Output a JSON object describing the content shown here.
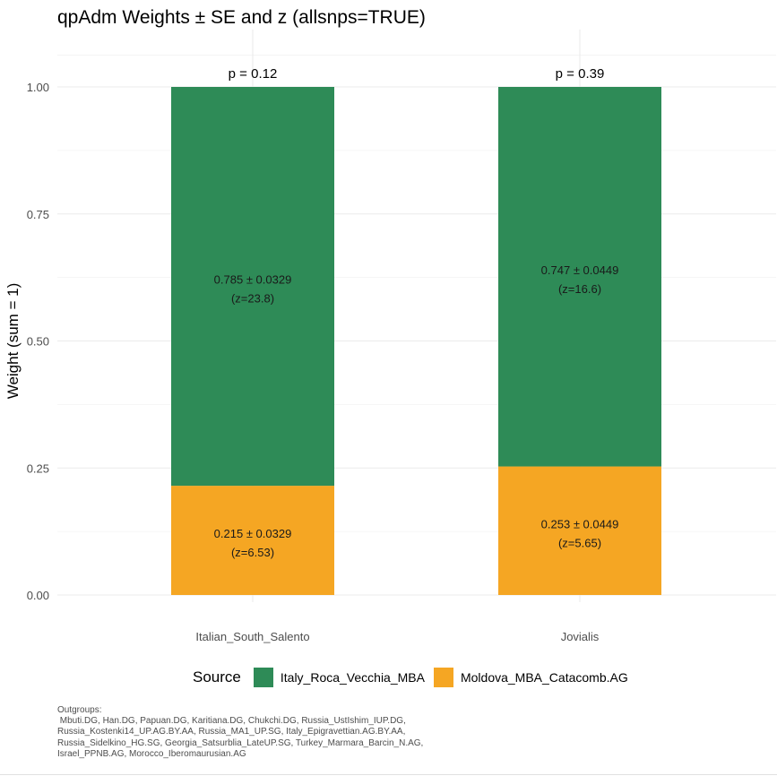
{
  "chart_data": {
    "type": "bar",
    "stacked": true,
    "title": "qpAdm Weights ± SE and z (allsnps=TRUE)",
    "xlabel": "",
    "ylabel": "Weight (sum = 1)",
    "ylim": [
      0,
      1
    ],
    "yticks": [
      "0.00",
      "0.25",
      "0.50",
      "0.75",
      "1.00"
    ],
    "categories": [
      "Italian_South_Salento",
      "Jovialis"
    ],
    "p_labels": [
      "p = 0.12",
      "p = 0.39"
    ],
    "legend_title": "Source",
    "legend_position": "bottom",
    "grid": true,
    "series": [
      {
        "name": "Italy_Roca_Vecchia_MBA",
        "color": "#2e8b57",
        "values": [
          0.785,
          0.747
        ],
        "labels": [
          [
            "0.785 ± 0.0329",
            "(z=23.8)"
          ],
          [
            "0.747 ± 0.0449",
            "(z=16.6)"
          ]
        ]
      },
      {
        "name": "Moldova_MBA_Catacomb.AG",
        "color": "#f5a623",
        "values": [
          0.215,
          0.253
        ],
        "labels": [
          [
            "0.215 ± 0.0329",
            "(z=6.53)"
          ],
          [
            "0.253 ± 0.0449",
            "(z=5.65)"
          ]
        ]
      }
    ]
  },
  "caption": {
    "lines": [
      "Outgroups:",
      " Mbuti.DG, Han.DG, Papuan.DG, Karitiana.DG, Chukchi.DG, Russia_UstIshim_IUP.DG,",
      "Russia_Kostenki14_UP.AG.BY.AA, Russia_MA1_UP.SG, Italy_Epigravettian.AG.BY.AA,",
      "Russia_Sidelkino_HG.SG, Georgia_Satsurblia_LateUP.SG, Turkey_Marmara_Barcin_N.AG,",
      "Israel_PPNB.AG, Morocco_Iberomaurusian.AG"
    ]
  }
}
